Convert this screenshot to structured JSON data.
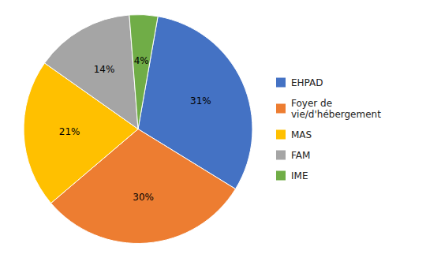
{
  "chart_data": {
    "type": "pie",
    "categories": [
      "EHPAD",
      "Foyer de\nvie/d'hébergement",
      "MAS",
      "FAM",
      "IME"
    ],
    "values": [
      31,
      30,
      21,
      14,
      4
    ],
    "value_labels": [
      "31%",
      "30%",
      "21%",
      "14%",
      "4%"
    ],
    "colors": [
      "#4472C4",
      "#ED7D31",
      "#FFC000",
      "#A5A5A5",
      "#70AD47"
    ],
    "data_labels": true,
    "legend": "right"
  }
}
